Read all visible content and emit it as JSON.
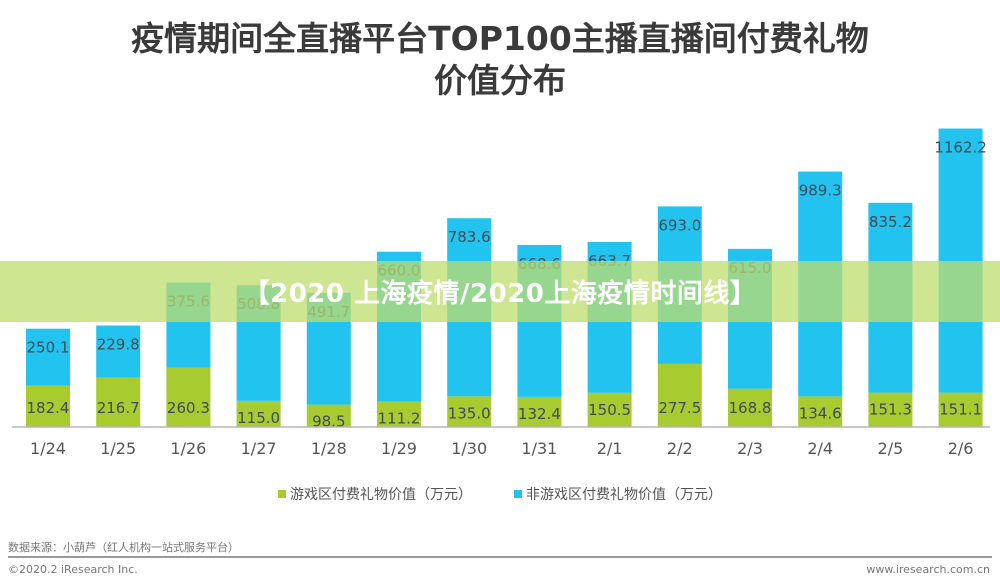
{
  "chart_data": {
    "type": "bar",
    "stacked": true,
    "title": "疫情期间全直播平台TOP100主播直播间付费礼物价值分布",
    "title_line1": "疫情期间全直播平台TOP100主播直播间付费礼物",
    "title_line2": "价值分布",
    "xlabel": "",
    "ylabel": "",
    "categories": [
      "1/24",
      "1/25",
      "1/26",
      "1/27",
      "1/28",
      "1/29",
      "1/30",
      "1/31",
      "2/1",
      "2/2",
      "2/3",
      "2/4",
      "2/5",
      "2/6"
    ],
    "series": [
      {
        "name": "游戏区付费礼物价值（万元）",
        "color": "#a8cc30",
        "values": [
          182.4,
          216.7,
          260.3,
          115.0,
          98.5,
          111.2,
          135.0,
          132.4,
          150.5,
          277.5,
          168.8,
          134.6,
          151.3,
          151.1
        ]
      },
      {
        "name": "非游戏区付费礼物价值（万元）",
        "color": "#22c3ef",
        "values": [
          250.1,
          229.8,
          375.6,
          508.8,
          491.7,
          660.0,
          783.6,
          668.6,
          663.7,
          693.0,
          615.0,
          989.3,
          835.2,
          1162.2
        ]
      }
    ],
    "ylim": [
      0,
      1320
    ],
    "grid": false,
    "legend_position": "bottom"
  },
  "labels": {
    "lower": [
      "182.4",
      "216.7",
      "260.3",
      "115.0",
      "98.5",
      "111.2",
      "135.0",
      "132.4",
      "150.5",
      "277.5",
      "168.8",
      "134.6",
      "151.3",
      "151.1"
    ],
    "upper": [
      "250.1",
      "229.8",
      "375.6",
      "508.8",
      "491.7",
      "660.0",
      "783.6",
      "668.6",
      "663.7",
      "693.0",
      "615.0",
      "989.3",
      "835.2",
      "1162.2"
    ]
  },
  "legend": {
    "game": "游戏区付费礼物价值（万元）",
    "nongame": "非游戏区付费礼物价值（万元）"
  },
  "footer": {
    "source": "数据来源：小葫芦（红人机构一站式服务平台）",
    "copyright": "©2020.2 iResearch Inc.",
    "site": "www.iresearch.com.cn"
  },
  "banner": {
    "text": "【2020 上海疫情/2020上海疫情时间线】"
  }
}
